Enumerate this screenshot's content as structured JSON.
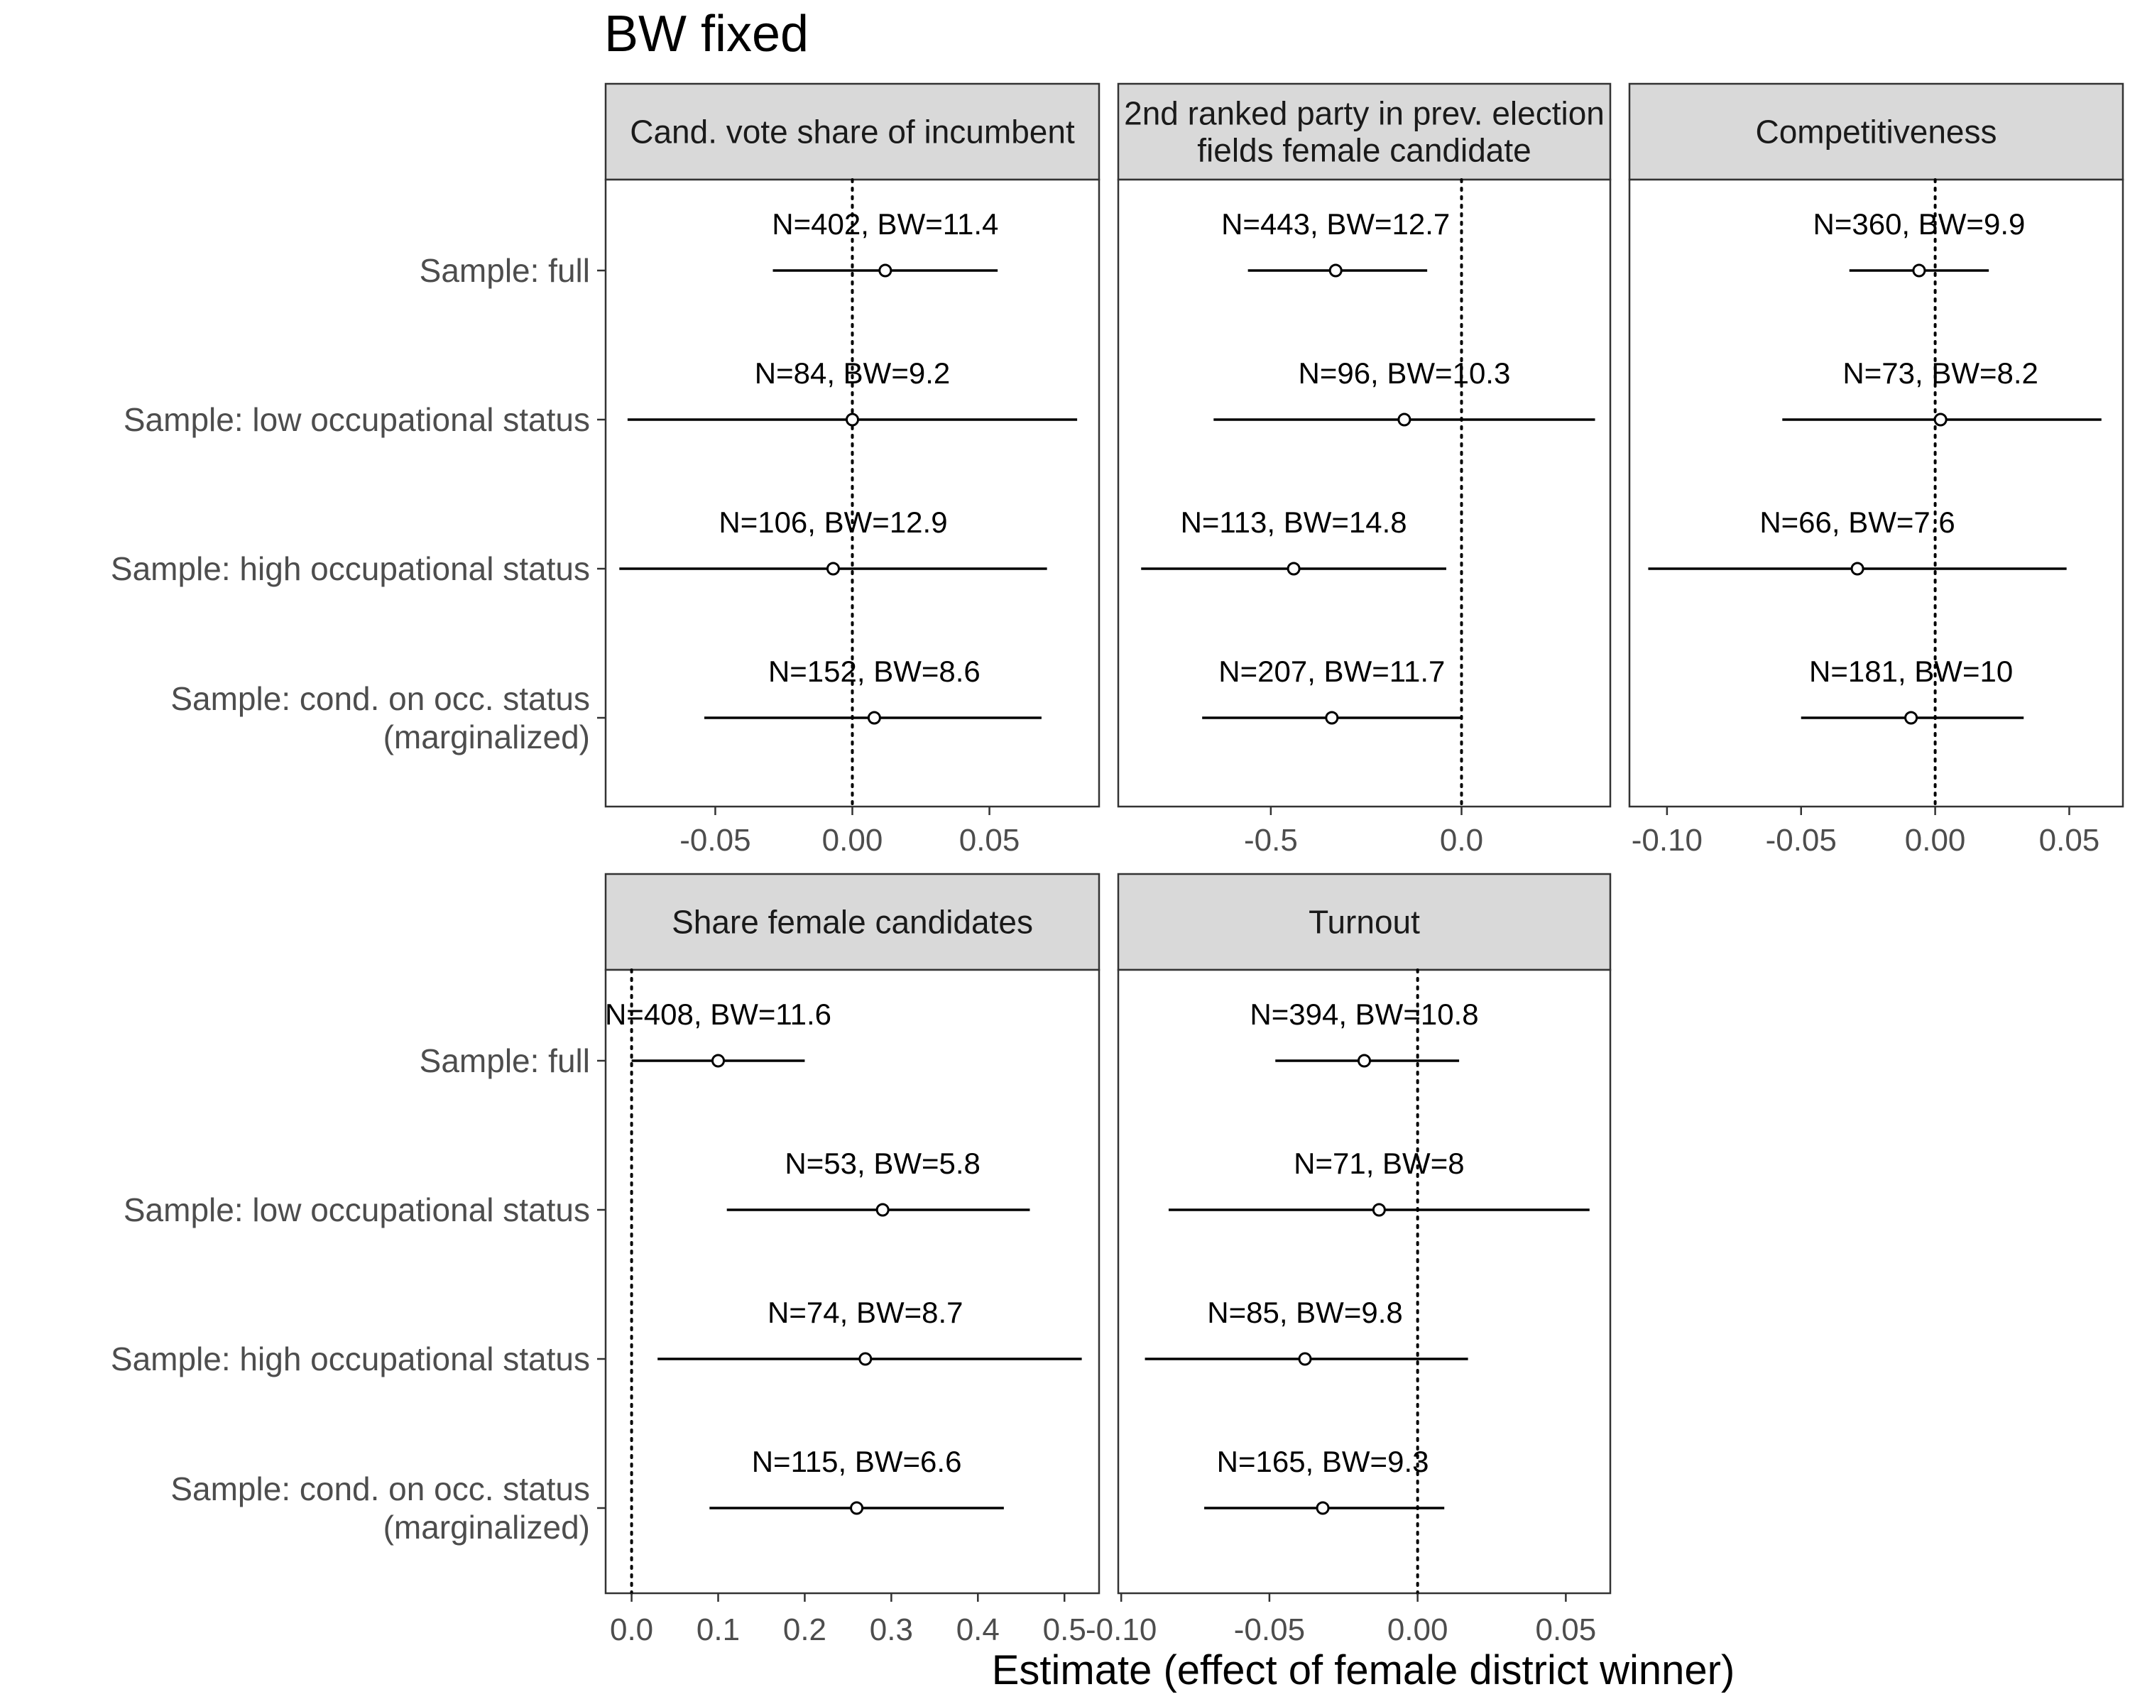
{
  "chart_data": {
    "type": "scatter",
    "subtype": "coefficient-plot-with-confidence-intervals",
    "title": "BW fixed",
    "xlabel": "Estimate (effect of female district winner)",
    "ylabel": "",
    "grid": false,
    "reference_line": {
      "x": 0,
      "style": "dotted"
    },
    "row_labels": [
      [
        "Sample: full"
      ],
      [
        "Sample: low occupational status"
      ],
      [
        "Sample: high occupational status"
      ],
      [
        "Sample: cond. on occ. status",
        "(marginalized)"
      ]
    ],
    "panels": [
      {
        "title": [
          "Cand. vote share of incumbent"
        ],
        "xlim": [
          -0.09,
          0.09
        ],
        "xticks": [
          -0.05,
          0,
          0.05
        ],
        "xtick_labels": [
          "-0.05",
          "0.00",
          "0.05"
        ],
        "points": [
          {
            "estimate": 0.012,
            "ci_low": -0.029,
            "ci_high": 0.053,
            "label": "N=402, BW=11.4"
          },
          {
            "estimate": 0.0,
            "ci_low": -0.082,
            "ci_high": 0.082,
            "label": "N=84, BW=9.2"
          },
          {
            "estimate": -0.007,
            "ci_low": -0.085,
            "ci_high": 0.071,
            "label": "N=106, BW=12.9"
          },
          {
            "estimate": 0.008,
            "ci_low": -0.054,
            "ci_high": 0.069,
            "label": "N=152, BW=8.6"
          }
        ]
      },
      {
        "title": [
          "2nd ranked party in prev. election",
          "fields female candidate"
        ],
        "xlim": [
          -0.9,
          0.39
        ],
        "xticks": [
          -0.5,
          0
        ],
        "xtick_labels": [
          "-0.5",
          "0.0"
        ],
        "points": [
          {
            "estimate": -0.33,
            "ci_low": -0.56,
            "ci_high": -0.09,
            "label": "N=443, BW=12.7"
          },
          {
            "estimate": -0.15,
            "ci_low": -0.65,
            "ci_high": 0.35,
            "label": "N=96, BW=10.3"
          },
          {
            "estimate": -0.44,
            "ci_low": -0.84,
            "ci_high": -0.04,
            "label": "N=113, BW=14.8"
          },
          {
            "estimate": -0.34,
            "ci_low": -0.68,
            "ci_high": 0.0,
            "label": "N=207, BW=11.7"
          }
        ]
      },
      {
        "title": [
          "Competitiveness"
        ],
        "xlim": [
          -0.114,
          0.07
        ],
        "xticks": [
          -0.1,
          -0.05,
          0,
          0.05
        ],
        "xtick_labels": [
          "-0.10",
          "-0.05",
          "0.00",
          "0.05"
        ],
        "points": [
          {
            "estimate": -0.006,
            "ci_low": -0.032,
            "ci_high": 0.02,
            "label": "N=360, BW=9.9"
          },
          {
            "estimate": 0.002,
            "ci_low": -0.057,
            "ci_high": 0.062,
            "label": "N=73, BW=8.2"
          },
          {
            "estimate": -0.029,
            "ci_low": -0.107,
            "ci_high": 0.049,
            "label": "N=66, BW=7.6"
          },
          {
            "estimate": -0.009,
            "ci_low": -0.05,
            "ci_high": 0.033,
            "label": "N=181, BW=10"
          }
        ]
      },
      {
        "title": [
          "Share female candidates"
        ],
        "xlim": [
          -0.03,
          0.54
        ],
        "xticks": [
          0,
          0.1,
          0.2,
          0.3,
          0.4,
          0.5
        ],
        "xtick_labels": [
          "0.0",
          "0.1",
          "0.2",
          "0.3",
          "0.4",
          "0.5"
        ],
        "points": [
          {
            "estimate": 0.1,
            "ci_low": -0.0,
            "ci_high": 0.2,
            "label": "N=408, BW=11.6"
          },
          {
            "estimate": 0.29,
            "ci_low": 0.11,
            "ci_high": 0.46,
            "label": "N=53, BW=5.8"
          },
          {
            "estimate": 0.27,
            "ci_low": 0.03,
            "ci_high": 0.52,
            "label": "N=74, BW=8.7"
          },
          {
            "estimate": 0.26,
            "ci_low": 0.09,
            "ci_high": 0.43,
            "label": "N=115, BW=6.6"
          }
        ]
      },
      {
        "title": [
          "Turnout"
        ],
        "xlim": [
          -0.101,
          0.065
        ],
        "xticks": [
          -0.1,
          -0.05,
          0,
          0.05
        ],
        "xtick_labels": [
          "-0.10",
          "-0.05",
          "0.00",
          "0.05"
        ],
        "points": [
          {
            "estimate": -0.018,
            "ci_low": -0.048,
            "ci_high": 0.014,
            "label": "N=394, BW=10.8"
          },
          {
            "estimate": -0.013,
            "ci_low": -0.084,
            "ci_high": 0.058,
            "label": "N=71, BW=8"
          },
          {
            "estimate": -0.038,
            "ci_low": -0.092,
            "ci_high": 0.017,
            "label": "N=85, BW=9.8"
          },
          {
            "estimate": -0.032,
            "ci_low": -0.072,
            "ci_high": 0.009,
            "label": "N=165, BW=9.3"
          }
        ]
      }
    ]
  }
}
